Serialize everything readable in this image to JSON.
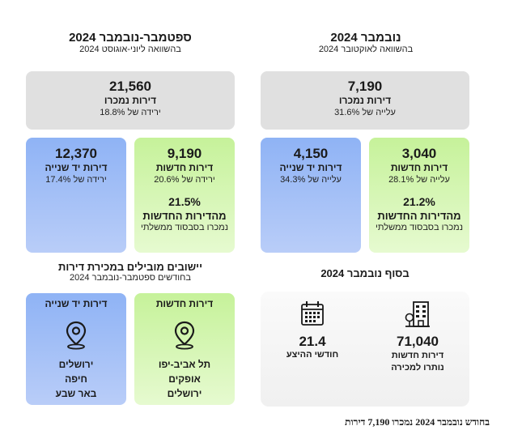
{
  "left_section": {
    "title": "ספטמבר-נובמבר 2024",
    "subtitle": "בהשוואה ליוני-אוגוסט 2024",
    "total": {
      "value": "21,560",
      "label": "דירות נמכרו",
      "change": "ירידה של 18.8%"
    },
    "second_hand": {
      "value": "12,370",
      "label": "דירות יד שנייה",
      "change": "ירידה של 17.4%"
    },
    "new": {
      "value": "9,190",
      "label": "דירות חדשות",
      "change": "ירידה של 20.6%",
      "share_value": "21.5%",
      "share_label": "מהדירות החדשות",
      "share_note": "נמכרו בסבסוד ממשלתי"
    }
  },
  "right_section": {
    "title": "נובמבר 2024",
    "subtitle": "בהשוואה לאוקטובר 2024",
    "total": {
      "value": "7,190",
      "label": "דירות נמכרו",
      "change": "עלייה של 31.6%"
    },
    "second_hand": {
      "value": "4,150",
      "label": "דירות יד שנייה",
      "change": "עלייה של 34.3%"
    },
    "new": {
      "value": "3,040",
      "label": "דירות חדשות",
      "change": "עלייה של 28.1%",
      "share_value": "21.2%",
      "share_label": "מהדירות החדשות",
      "share_note": "נמכרו בסבסוד ממשלתי"
    }
  },
  "leading": {
    "title": "יישובים מובילים במכירת דירות",
    "subtitle": "בחודשים ספטמבר-נובמבר 2024",
    "second_hand": {
      "title": "דירות יד שנייה",
      "places": [
        "ירושלים",
        "חיפה",
        "באר שבע"
      ]
    },
    "new": {
      "title": "דירות חדשות",
      "places": [
        "תל אביב-יפו",
        "אופקים",
        "ירושלים"
      ]
    }
  },
  "end_of_month": {
    "title": "בסוף נובמבר 2024",
    "inventory": {
      "value": "71,040",
      "line1": "דירות חדשות",
      "line2": "נותרו למכירה"
    },
    "supply": {
      "value": "21.4",
      "label": "חודשי ההיצע"
    }
  },
  "footnote": "בחודש נובמבר 2024 נמכרו 7,190 דירות",
  "colors": {
    "grey": "#e0e0e0",
    "blue": "#8fb3f5",
    "green": "#c6f29a"
  }
}
